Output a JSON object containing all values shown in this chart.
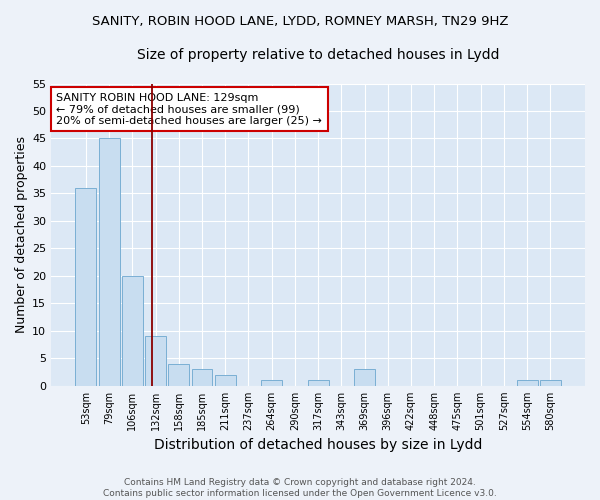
{
  "title1": "SANITY, ROBIN HOOD LANE, LYDD, ROMNEY MARSH, TN29 9HZ",
  "title2": "Size of property relative to detached houses in Lydd",
  "xlabel": "Distribution of detached houses by size in Lydd",
  "ylabel": "Number of detached properties",
  "categories": [
    "53sqm",
    "79sqm",
    "106sqm",
    "132sqm",
    "158sqm",
    "185sqm",
    "211sqm",
    "237sqm",
    "264sqm",
    "290sqm",
    "317sqm",
    "343sqm",
    "369sqm",
    "396sqm",
    "422sqm",
    "448sqm",
    "475sqm",
    "501sqm",
    "527sqm",
    "554sqm",
    "580sqm"
  ],
  "values": [
    36,
    45,
    20,
    9,
    4,
    3,
    2,
    0,
    1,
    0,
    1,
    0,
    3,
    0,
    0,
    0,
    0,
    0,
    0,
    1,
    1
  ],
  "bar_color": "#c8ddf0",
  "bar_edge_color": "#7aafd4",
  "reference_line_color": "#8b0000",
  "annotation_text": "SANITY ROBIN HOOD LANE: 129sqm\n← 79% of detached houses are smaller (99)\n20% of semi-detached houses are larger (25) →",
  "annotation_box_facecolor": "#ffffff",
  "annotation_box_edgecolor": "#cc0000",
  "ylim": [
    0,
    55
  ],
  "yticks": [
    0,
    5,
    10,
    15,
    20,
    25,
    30,
    35,
    40,
    45,
    50,
    55
  ],
  "plot_bg_color": "#dce8f5",
  "fig_bg_color": "#edf2f9",
  "footer_text": "Contains HM Land Registry data © Crown copyright and database right 2024.\nContains public sector information licensed under the Open Government Licence v3.0.",
  "title1_fontsize": 9.5,
  "title2_fontsize": 10,
  "xlabel_fontsize": 10,
  "ylabel_fontsize": 9,
  "footer_fontsize": 6.5
}
